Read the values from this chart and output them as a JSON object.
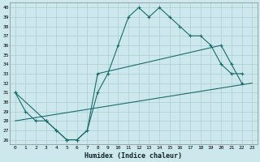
{
  "xlabel": "Humidex (Indice chaleur)",
  "bg_color": "#cce8ec",
  "grid_color": "#aacdd4",
  "line_color": "#1a6b6b",
  "xlim": [
    -0.5,
    23.5
  ],
  "ylim": [
    25.5,
    40.5
  ],
  "yticks": [
    26,
    27,
    28,
    29,
    30,
    31,
    32,
    33,
    34,
    35,
    36,
    37,
    38,
    39,
    40
  ],
  "xticks": [
    0,
    1,
    2,
    3,
    4,
    5,
    6,
    7,
    8,
    9,
    10,
    11,
    12,
    13,
    14,
    15,
    16,
    17,
    18,
    19,
    20,
    21,
    22,
    23
  ],
  "line1_x": [
    0,
    1,
    2,
    3,
    4,
    5,
    6,
    7,
    8,
    9,
    10,
    11,
    12,
    13,
    14,
    15,
    16,
    17,
    18,
    19,
    20,
    21,
    22
  ],
  "line1_y": [
    31,
    29,
    28,
    28,
    27,
    26,
    26,
    27,
    31,
    33,
    36,
    39,
    40,
    39,
    40,
    39,
    38,
    37,
    37,
    36,
    34,
    33,
    33
  ],
  "line2_x": [
    0,
    3,
    4,
    5,
    6,
    7,
    8,
    20,
    21,
    22
  ],
  "line2_y": [
    31,
    28,
    27,
    26,
    26,
    27,
    33,
    36,
    34,
    32
  ],
  "line3_x": [
    0,
    23
  ],
  "line3_y": [
    28,
    32
  ]
}
